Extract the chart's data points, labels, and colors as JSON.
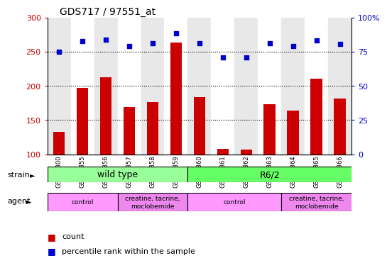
{
  "title": "GDS717 / 97551_at",
  "samples": [
    "GSM13300",
    "GSM13355",
    "GSM13356",
    "GSM13357",
    "GSM13358",
    "GSM13359",
    "GSM13360",
    "GSM13361",
    "GSM13362",
    "GSM13363",
    "GSM13364",
    "GSM13365",
    "GSM13366"
  ],
  "counts": [
    133,
    197,
    213,
    169,
    176,
    263,
    184,
    108,
    107,
    173,
    164,
    210,
    181
  ],
  "percentile_raw": [
    250,
    265,
    267,
    258,
    262,
    277,
    262,
    242,
    242,
    262,
    258,
    266,
    261
  ],
  "bar_color": "#cc0000",
  "dot_color": "#0000cc",
  "ylim_left": [
    100,
    300
  ],
  "yticks_left": [
    100,
    150,
    200,
    250,
    300
  ],
  "yticks_right_labels": [
    "0",
    "25",
    "50",
    "75",
    "100%"
  ],
  "hlines": [
    150,
    200,
    250
  ],
  "color_wt": "#99ff99",
  "color_r62": "#66ff66",
  "color_control": "#ff99ff",
  "color_treat": "#ee88ee",
  "left_axis_color": "#cc0000",
  "right_axis_color": "#0000cc",
  "bg_color": "#ffffff",
  "plot_bg_color": "#ffffff",
  "col_bg_even": "#e8e8e8",
  "col_bg_odd": "#ffffff"
}
